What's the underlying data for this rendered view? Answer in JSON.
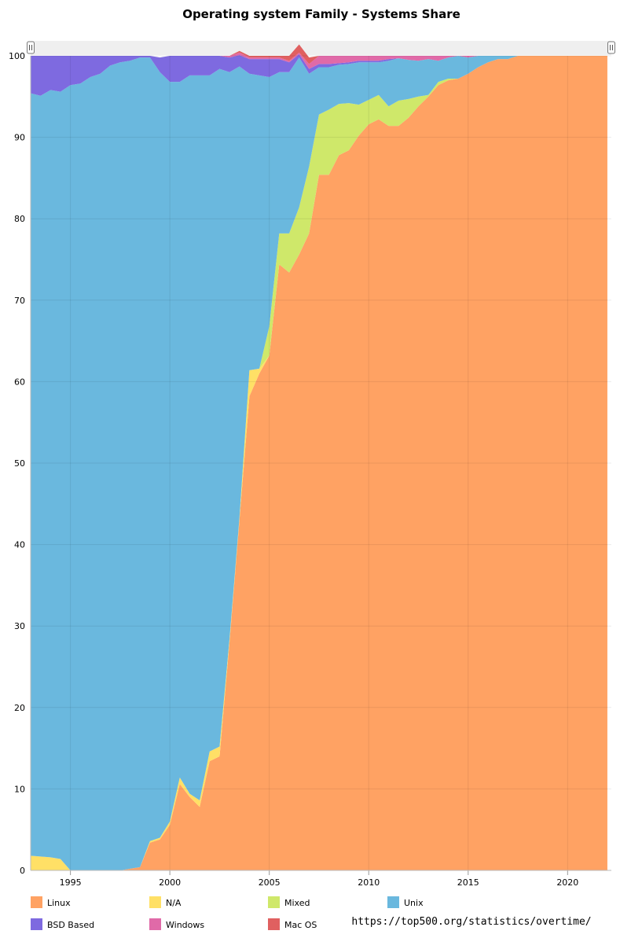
{
  "chart_data": {
    "type": "area",
    "stacked": true,
    "percent": true,
    "title": "Operating system Family - Systems Share",
    "xlabel": "",
    "ylabel": "",
    "xlim": [
      1993.0,
      2022.2
    ],
    "ylim": [
      0,
      100
    ],
    "x_ticks": [
      1995,
      2000,
      2005,
      2010,
      2015,
      2020
    ],
    "y_ticks": [
      0,
      10,
      20,
      30,
      40,
      50,
      60,
      70,
      80,
      90,
      100
    ],
    "grid": true,
    "legend_position": "bottom",
    "source": "https://top500.org/statistics/overtime/",
    "x": [
      1993.0,
      1993.5,
      1994.0,
      1994.5,
      1995.0,
      1995.5,
      1996.0,
      1996.5,
      1997.0,
      1997.5,
      1998.0,
      1998.5,
      1999.0,
      1999.5,
      2000.0,
      2000.5,
      2001.0,
      2001.5,
      2002.0,
      2002.5,
      2003.0,
      2003.5,
      2004.0,
      2004.5,
      2005.0,
      2005.5,
      2006.0,
      2006.5,
      2007.0,
      2007.5,
      2008.0,
      2008.5,
      2009.0,
      2009.5,
      2010.0,
      2010.5,
      2011.0,
      2011.5,
      2012.0,
      2012.5,
      2013.0,
      2013.5,
      2014.0,
      2014.5,
      2015.0,
      2015.5,
      2016.0,
      2016.5,
      2017.0,
      2017.5,
      2018.0,
      2018.5,
      2019.0,
      2019.5,
      2020.0,
      2020.5,
      2021.0,
      2021.5,
      2022.0
    ],
    "series": [
      {
        "name": "Linux",
        "color": "#ffa263",
        "values": [
          0,
          0,
          0,
          0,
          0,
          0,
          0,
          0,
          0,
          0,
          0.2,
          0.4,
          3.4,
          3.8,
          5.6,
          10.6,
          9,
          7.8,
          13.4,
          14,
          28,
          43,
          58.2,
          61,
          63.2,
          74.4,
          73.4,
          75.6,
          78.2,
          85.4,
          85.4,
          87.8,
          88.4,
          90.2,
          91.6,
          92.2,
          91.4,
          91.4,
          92.4,
          93.8,
          95,
          96.4,
          97,
          97.2,
          97.8,
          98.6,
          99.2,
          99.6,
          99.6,
          100,
          100,
          100,
          100,
          100,
          100,
          100,
          100,
          100,
          100
        ]
      },
      {
        "name": "N/A",
        "color": "#ffe066",
        "values": [
          1.8,
          1.7,
          1.6,
          1.4,
          0,
          0,
          0,
          0,
          0,
          0,
          0,
          0,
          0.2,
          0.2,
          0.4,
          0.8,
          0.4,
          0.8,
          1.2,
          1.2,
          0.4,
          0.3,
          3.2,
          0.6,
          0,
          0,
          0,
          0,
          0,
          0,
          0,
          0,
          0,
          0,
          0,
          0,
          0,
          0,
          0,
          0,
          0,
          0,
          0,
          0,
          0,
          0,
          0,
          0,
          0,
          0,
          0,
          0,
          0,
          0,
          0,
          0,
          0,
          0,
          0
        ]
      },
      {
        "name": "Mixed",
        "color": "#cfe86a",
        "values": [
          0,
          0,
          0,
          0,
          0,
          0,
          0,
          0,
          0,
          0,
          0,
          0,
          0,
          0,
          0,
          0,
          0,
          0,
          0,
          0,
          0,
          0,
          0,
          0,
          3.6,
          3.8,
          4.8,
          5.8,
          8.2,
          7.4,
          8,
          6.3,
          5.8,
          3.8,
          3,
          3,
          2.4,
          3.1,
          2.3,
          1.2,
          0.2,
          0.4,
          0.2,
          0,
          0,
          0,
          0,
          0,
          0,
          0,
          0,
          0,
          0,
          0,
          0,
          0,
          0,
          0,
          0
        ]
      },
      {
        "name": "Unix",
        "color": "#6ab8de",
        "values": [
          93.6,
          93.4,
          94.2,
          94.2,
          96.4,
          96.6,
          97.4,
          97.8,
          98.8,
          99.2,
          99.2,
          99.4,
          96.2,
          94,
          90.8,
          85.4,
          88.2,
          89,
          83,
          83.2,
          69.6,
          55.4,
          36.4,
          36,
          30.6,
          19.8,
          19.8,
          18.4,
          11.4,
          5.8,
          5.2,
          4.8,
          4.8,
          5.2,
          4.6,
          4,
          5.6,
          5.2,
          4.8,
          4.4,
          4.4,
          2.6,
          2.6,
          2.8,
          2,
          1.4,
          0.8,
          0.4,
          0.4,
          0,
          0,
          0,
          0,
          0,
          0,
          0,
          0,
          0,
          0
        ]
      },
      {
        "name": "BSD Based",
        "color": "#7e6ae0",
        "values": [
          4.6,
          4.9,
          4.2,
          4.4,
          3.6,
          3.4,
          2.6,
          2.2,
          1.2,
          0.8,
          0.6,
          0.2,
          0.2,
          1.8,
          3.2,
          3.2,
          2.4,
          2.4,
          2.4,
          1.6,
          1.8,
          1.4,
          1.8,
          2,
          2.2,
          1.6,
          1.2,
          0.4,
          0.6,
          0.4,
          0.4,
          0.2,
          0.2,
          0.2,
          0.2,
          0.2,
          0.2,
          0,
          0,
          0,
          0,
          0,
          0,
          0,
          0,
          0,
          0,
          0,
          0,
          0,
          0,
          0,
          0,
          0,
          0,
          0,
          0,
          0,
          0
        ]
      },
      {
        "name": "Windows",
        "color": "#e06aa8",
        "values": [
          0,
          0,
          0,
          0,
          0,
          0,
          0,
          0,
          0,
          0,
          0,
          0,
          0,
          0,
          0,
          0,
          0,
          0,
          0,
          0,
          0.2,
          0.3,
          0.2,
          0.2,
          0.2,
          0.2,
          0.2,
          0.2,
          0.6,
          1,
          1,
          0.9,
          0.8,
          0.6,
          0.6,
          0.6,
          0.4,
          0.3,
          0.5,
          0.6,
          0.4,
          0.6,
          0.2,
          0,
          0.2,
          0,
          0,
          0,
          0,
          0,
          0,
          0,
          0,
          0,
          0,
          0,
          0,
          0,
          0
        ]
      },
      {
        "name": "Mac OS",
        "color": "#e06060",
        "values": [
          0,
          0,
          0,
          0,
          0,
          0,
          0,
          0,
          0,
          0,
          0,
          0,
          0,
          0,
          0,
          0,
          0,
          0,
          0,
          0,
          0,
          0.2,
          0.2,
          0.2,
          0.2,
          0.2,
          0.6,
          1,
          0.8,
          0,
          0,
          0,
          0,
          0,
          0,
          0,
          0,
          0,
          0,
          0,
          0,
          0,
          0,
          0,
          0,
          0,
          0,
          0,
          0,
          0,
          0,
          0,
          0,
          0,
          0,
          0,
          0,
          0,
          0
        ]
      }
    ]
  }
}
